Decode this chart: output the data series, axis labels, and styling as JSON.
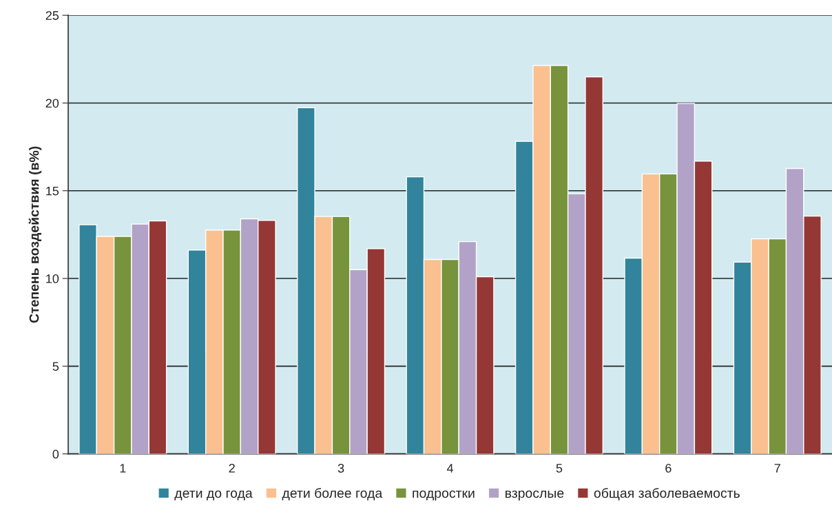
{
  "chart_data": {
    "type": "bar",
    "ylabel": "Степень воздействия (в%)",
    "categories": [
      "1",
      "2",
      "3",
      "4",
      "5",
      "6",
      "7"
    ],
    "series": [
      {
        "name": "дети до года",
        "color": "#31849b",
        "values": [
          13.06,
          11.62,
          19.73,
          15.79,
          17.82,
          11.16,
          10.93
        ]
      },
      {
        "name": "дети более года",
        "color": "#fac090",
        "values": [
          12.4,
          12.76,
          13.53,
          11.08,
          22.14,
          15.96,
          12.26
        ]
      },
      {
        "name": "подростки",
        "color": "#77933c",
        "values": [
          12.4,
          12.76,
          13.53,
          11.08,
          22.14,
          15.96,
          12.26
        ]
      },
      {
        "name": "взрослые",
        "color": "#b3a2c7",
        "values": [
          13.1,
          13.4,
          10.5,
          12.1,
          14.83,
          19.97,
          16.27
        ]
      },
      {
        "name": "общая заболеваемость",
        "color": "#953735",
        "values": [
          13.28,
          13.31,
          11.7,
          10.1,
          21.49,
          16.69,
          13.55
        ]
      }
    ],
    "ylim": [
      0,
      25
    ],
    "yticks": [
      0,
      5,
      10,
      15,
      20,
      25
    ],
    "grid": "y",
    "legend": "bottom"
  }
}
